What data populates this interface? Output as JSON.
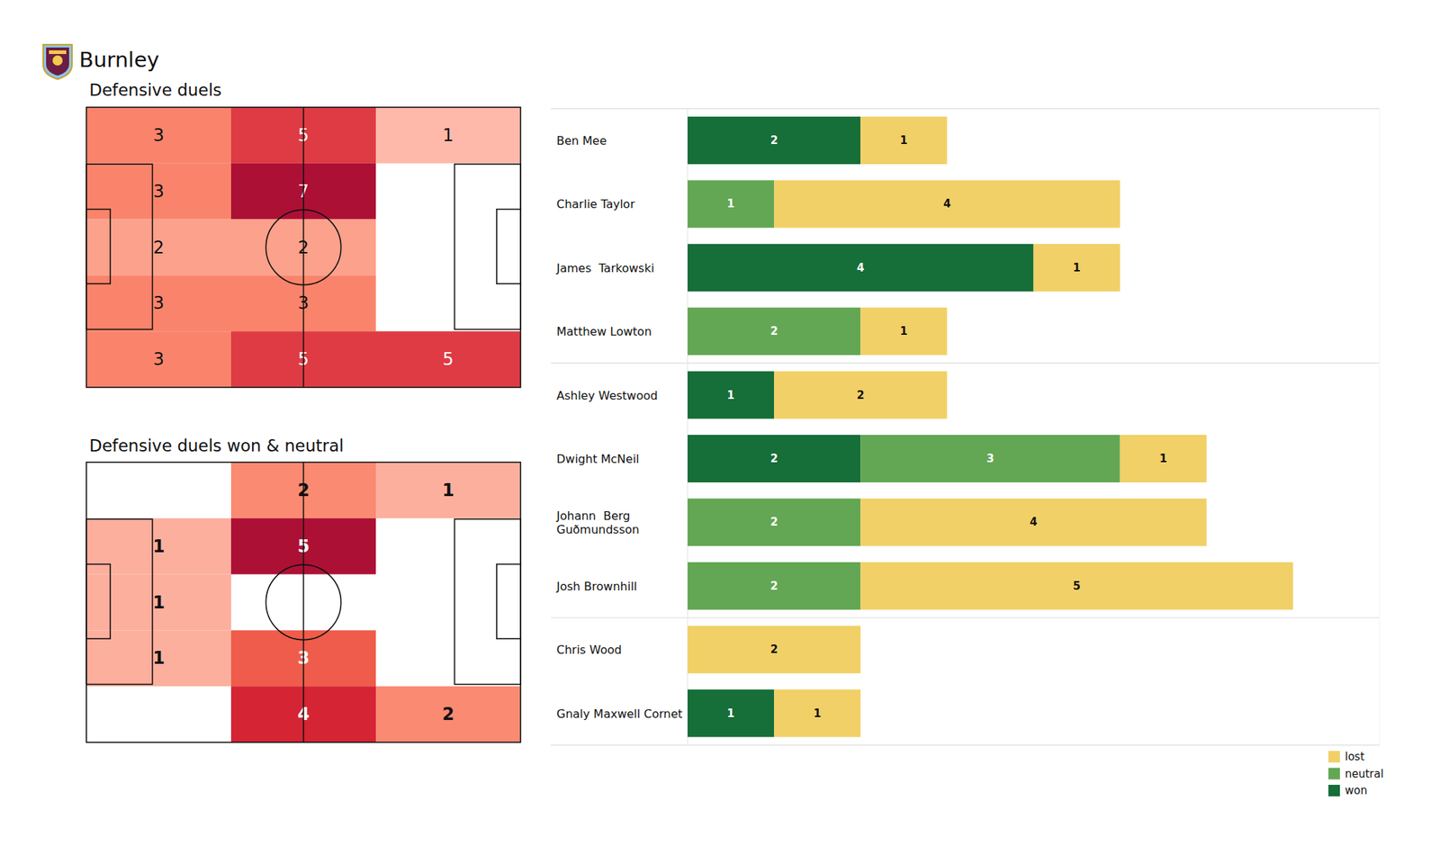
{
  "title": "Burnley",
  "chart_data": [
    {
      "type": "heatmap",
      "title": "Defensive duels",
      "data_labels": true,
      "cells": [
        [
          3,
          5,
          1
        ],
        [
          3,
          7,
          null
        ],
        [
          2,
          2,
          null
        ],
        [
          3,
          3,
          null
        ],
        [
          3,
          5,
          5
        ]
      ]
    },
    {
      "type": "heatmap",
      "title": "Defensive duels won & neutral",
      "data_labels": true,
      "cells": [
        [
          null,
          2,
          1
        ],
        [
          1,
          5,
          null
        ],
        [
          1,
          null,
          null
        ],
        [
          1,
          3,
          null
        ],
        [
          null,
          4,
          2
        ]
      ]
    },
    {
      "type": "bar",
      "orientation": "horizontal",
      "stacked": true,
      "data_labels": true,
      "tick_labels": "y",
      "legend": "lower right",
      "xlim": [
        0,
        8
      ],
      "xticks": [],
      "categories": [
        "Ben Mee",
        "Charlie Taylor",
        "James  Tarkowski",
        "Matthew Lowton",
        "Ashley Westwood",
        "Dwight McNeil",
        "Johann  Berg\nGuðmundsson",
        "Josh Brownhill",
        "Chris Wood",
        "Gnaly Maxwell Cornet"
      ],
      "series": [
        {
          "name": "won",
          "color": "#166e38",
          "values": [
            2,
            0,
            4,
            0,
            1,
            2,
            0,
            0,
            0,
            1
          ]
        },
        {
          "name": "neutral",
          "color": "#63a754",
          "values": [
            0,
            1,
            0,
            2,
            0,
            3,
            2,
            2,
            0,
            0
          ]
        },
        {
          "name": "lost",
          "color": "#f1d067",
          "values": [
            1,
            4,
            1,
            1,
            2,
            1,
            4,
            5,
            2,
            1
          ]
        }
      ]
    }
  ]
}
